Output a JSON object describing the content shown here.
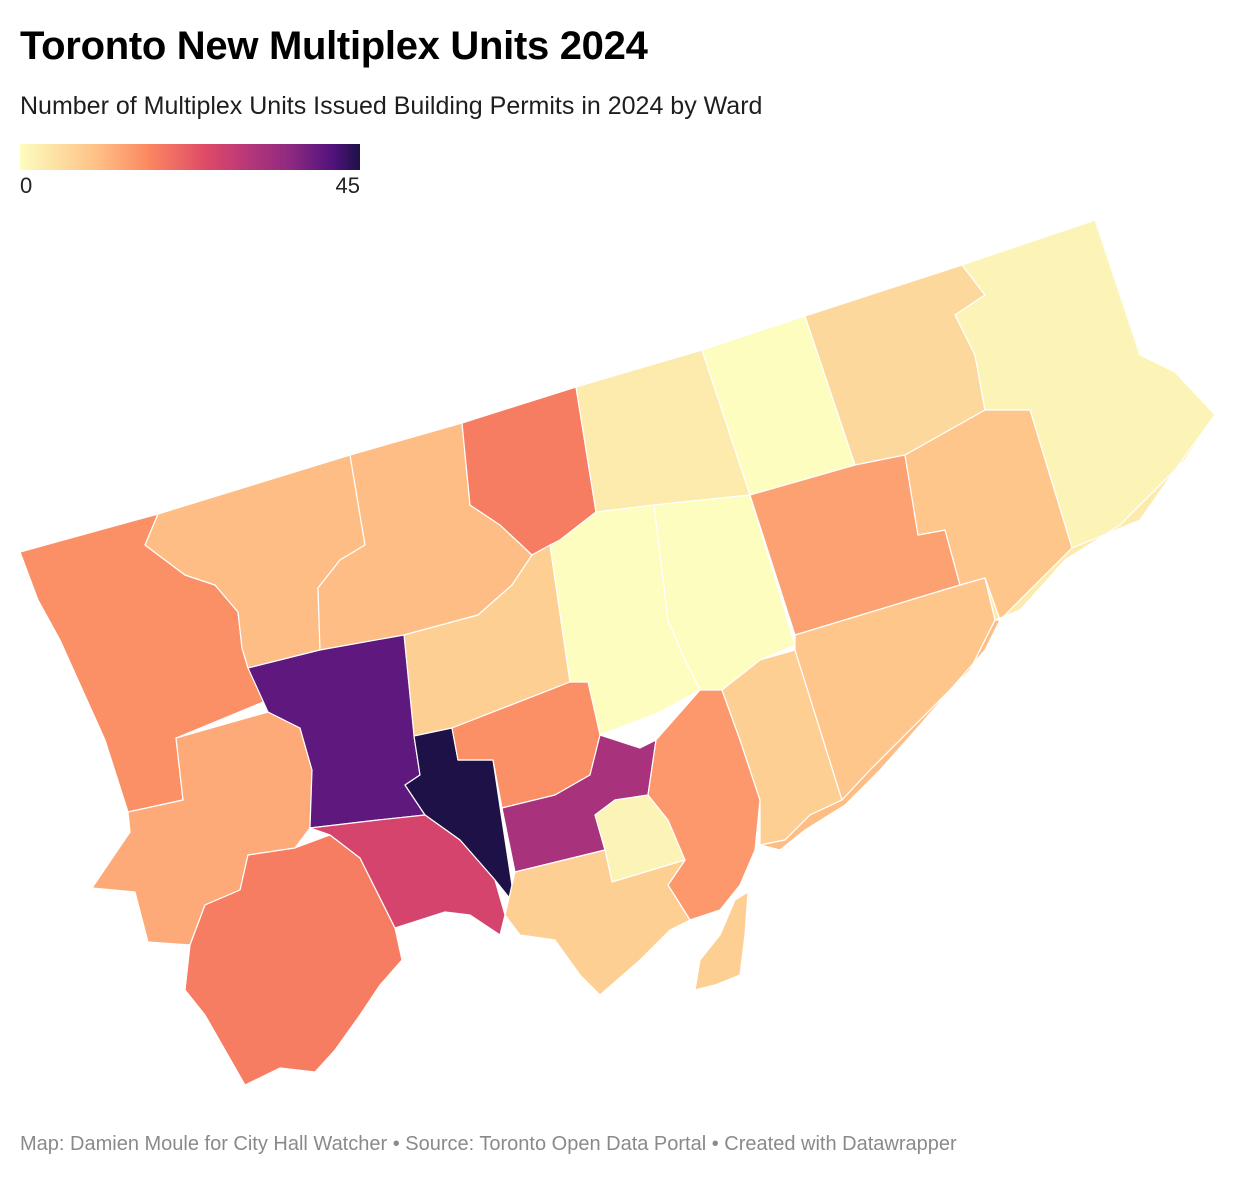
{
  "header": {
    "title": "Toronto New Multiplex Units 2024",
    "subtitle": "Number of Multiplex Units Issued Building Permits in 2024 by Ward"
  },
  "legend": {
    "min_label": "0",
    "max_label": "45",
    "min_value": 0,
    "max_value": 45,
    "palette": [
      "#fcfdbf",
      "#fec287",
      "#fb8761",
      "#de4968",
      "#b73779",
      "#8c2981",
      "#51127c",
      "#1d1147"
    ]
  },
  "map": {
    "region": "Toronto",
    "wards": [
      {
        "id": "etobicoke-north",
        "value": 12
      },
      {
        "id": "north-york-northwest",
        "value": 7
      },
      {
        "id": "york-centre-north",
        "value": 7
      },
      {
        "id": "humber-river-black-creek",
        "value": 14
      },
      {
        "id": "willowdale-west",
        "value": 2
      },
      {
        "id": "willowdale-east",
        "value": 0
      },
      {
        "id": "don-valley-north",
        "value": 4
      },
      {
        "id": "scarborough-north",
        "value": 1
      },
      {
        "id": "scarborough-rouge-park",
        "value": 2
      },
      {
        "id": "york-centre",
        "value": 5
      },
      {
        "id": "eglinton-lawrence",
        "value": 0
      },
      {
        "id": "don-valley-west",
        "value": 0
      },
      {
        "id": "scarborough-agincourt",
        "value": 10
      },
      {
        "id": "scarborough-centre",
        "value": 6
      },
      {
        "id": "etobicoke-centre",
        "value": 9
      },
      {
        "id": "york-south-weston",
        "value": 37
      },
      {
        "id": "davenport",
        "value": 45
      },
      {
        "id": "toronto-st-pauls",
        "value": 12
      },
      {
        "id": "university-rosedale",
        "value": 28
      },
      {
        "id": "toronto-centre",
        "value": 1
      },
      {
        "id": "toronto-danforth",
        "value": 11
      },
      {
        "id": "don-valley-east",
        "value": 5
      },
      {
        "id": "scarborough-southwest",
        "value": 6
      },
      {
        "id": "etobicoke-lakeshore",
        "value": 14
      },
      {
        "id": "parkdale-high-park",
        "value": 21
      },
      {
        "id": "spadina-fort-york",
        "value": 5
      },
      {
        "id": "beaches-east-york",
        "value": 7
      }
    ]
  },
  "footer": {
    "credit": "Map: Damien Moule for City Hall Watcher • Source: Toronto Open Data Portal • Created with Datawrapper"
  }
}
